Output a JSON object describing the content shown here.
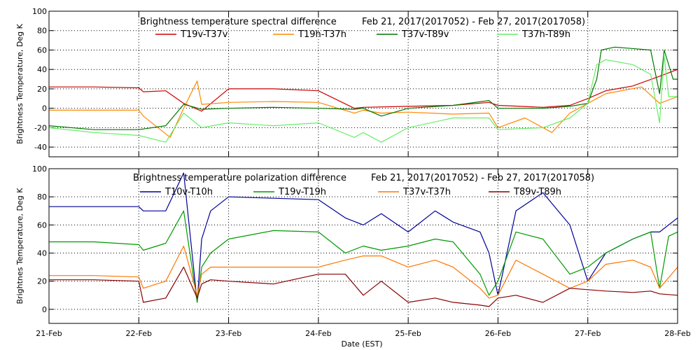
{
  "figure": {
    "xlabel": "Date (EST)",
    "x_tick_labels": [
      "21-Feb",
      "22-Feb",
      "23-Feb",
      "24-Feb",
      "25-Feb",
      "26-Feb",
      "27-Feb",
      "28-Feb"
    ]
  },
  "chart_data": [
    {
      "type": "line",
      "title": "Brightness temperature spectral difference",
      "date_range": "Feb 21, 2017(2017052) - Feb 27, 2017(2017058)",
      "ylabel": "Brightness Temperature, Deg K",
      "ylim": [
        -50,
        100
      ],
      "yticks": [
        -40,
        -20,
        0,
        20,
        40,
        60,
        80,
        100
      ],
      "xlim": [
        0,
        7
      ],
      "grid": true,
      "legend": "top",
      "series": [
        {
          "name": "T19v-T37v",
          "color": "#cc0000",
          "x": [
            0,
            0.5,
            1,
            1.05,
            1.3,
            1.5,
            1.7,
            2,
            2.5,
            3,
            3.4,
            3.5,
            4,
            4.5,
            4.9,
            5,
            5.5,
            5.8,
            6,
            6.2,
            6.5,
            6.8,
            7
          ],
          "y": [
            22,
            22,
            21,
            17,
            18,
            5,
            -3,
            20,
            20,
            18,
            0,
            1,
            2,
            3,
            6,
            3,
            1,
            3,
            10,
            18,
            23,
            33,
            40
          ]
        },
        {
          "name": "T19h-T37h",
          "color": "#ff8800",
          "x": [
            0,
            0.5,
            1,
            1.05,
            1.35,
            1.5,
            1.65,
            1.7,
            2,
            2.5,
            3,
            3.4,
            3.5,
            3.7,
            4,
            4.5,
            4.9,
            5,
            5.3,
            5.6,
            5.8,
            6,
            6.2,
            6.6,
            6.8,
            7
          ],
          "y": [
            -2,
            -2,
            -2,
            -8,
            -30,
            0,
            28,
            4,
            6,
            7,
            6,
            -5,
            -2,
            -5,
            -4,
            -6,
            -5,
            -20,
            -10,
            -25,
            -5,
            5,
            15,
            22,
            5,
            12
          ]
        },
        {
          "name": "T37v-T89v",
          "color": "#007700",
          "x": [
            0,
            0.5,
            1,
            1.3,
            1.5,
            1.7,
            2,
            2.5,
            3,
            3.4,
            3.5,
            3.7,
            4,
            4.5,
            4.9,
            5,
            5.5,
            5.8,
            6,
            6.1,
            6.15,
            6.3,
            6.7,
            6.8,
            6.85,
            6.95,
            7
          ],
          "y": [
            -18,
            -22,
            -22,
            -18,
            4,
            -1,
            0,
            1,
            0,
            -1,
            0,
            -8,
            0,
            3,
            8,
            0,
            0,
            2,
            5,
            30,
            60,
            63,
            60,
            15,
            60,
            30,
            30
          ]
        },
        {
          "name": "T37h-T89h",
          "color": "#66ee66",
          "x": [
            0,
            0.5,
            1,
            1.3,
            1.5,
            1.7,
            2,
            2.5,
            3,
            3.4,
            3.5,
            3.7,
            4,
            4.5,
            4.9,
            5,
            5.5,
            5.8,
            6,
            6.1,
            6.2,
            6.5,
            6.7,
            6.8,
            6.85,
            6.9,
            7
          ],
          "y": [
            -20,
            -25,
            -28,
            -35,
            -5,
            -20,
            -15,
            -18,
            -15,
            -30,
            -25,
            -35,
            -20,
            -10,
            -10,
            -22,
            -20,
            -10,
            5,
            45,
            50,
            45,
            35,
            -15,
            55,
            12,
            12
          ]
        }
      ]
    },
    {
      "type": "line",
      "title": "Brightness temperature polarization difference",
      "date_range": "Feb 21, 2017(2017052) - Feb 27, 2017(2017058)",
      "ylabel": "Brightnes Temperature, Deg K",
      "ylim": [
        -10,
        100
      ],
      "yticks": [
        0,
        20,
        40,
        60,
        80,
        100
      ],
      "xlim": [
        0,
        7
      ],
      "grid": true,
      "legend": "top",
      "series": [
        {
          "name": "T10v-T10h",
          "color": "#000099",
          "x": [
            0,
            0.5,
            1,
            1.05,
            1.3,
            1.5,
            1.65,
            1.7,
            1.8,
            2,
            2.5,
            3,
            3.3,
            3.5,
            3.7,
            4,
            4.3,
            4.5,
            4.8,
            4.9,
            5,
            5.2,
            5.5,
            5.8,
            6,
            6.2,
            6.5,
            6.7,
            6.8,
            7
          ],
          "y": [
            73,
            73,
            73,
            70,
            70,
            97,
            5,
            50,
            70,
            80,
            79,
            78,
            65,
            60,
            68,
            55,
            70,
            62,
            55,
            40,
            10,
            70,
            83,
            60,
            20,
            40,
            50,
            55,
            55,
            65
          ]
        },
        {
          "name": "T19v-T19h",
          "color": "#009900",
          "x": [
            0,
            0.5,
            1,
            1.05,
            1.3,
            1.5,
            1.65,
            1.7,
            1.8,
            2,
            2.5,
            3,
            3.3,
            3.5,
            3.7,
            4,
            4.3,
            4.5,
            4.8,
            4.9,
            5,
            5.2,
            5.5,
            5.8,
            6,
            6.2,
            6.5,
            6.7,
            6.8,
            6.9,
            7
          ],
          "y": [
            48,
            48,
            46,
            42,
            47,
            70,
            5,
            30,
            40,
            50,
            56,
            55,
            40,
            45,
            42,
            45,
            50,
            48,
            25,
            10,
            20,
            55,
            50,
            25,
            30,
            40,
            50,
            55,
            15,
            52,
            55
          ]
        },
        {
          "name": "T37v-T37h",
          "color": "#ff7700",
          "x": [
            0,
            0.5,
            1,
            1.05,
            1.3,
            1.5,
            1.65,
            1.7,
            1.8,
            2,
            2.5,
            3,
            3.3,
            3.5,
            3.7,
            4,
            4.3,
            4.5,
            4.8,
            4.9,
            5,
            5.2,
            5.5,
            5.8,
            6,
            6.2,
            6.5,
            6.7,
            6.8,
            7
          ],
          "y": [
            24,
            24,
            23,
            15,
            20,
            45,
            10,
            25,
            30,
            30,
            30,
            30,
            35,
            38,
            38,
            30,
            35,
            30,
            15,
            8,
            10,
            35,
            25,
            15,
            20,
            32,
            35,
            30,
            15,
            30
          ]
        },
        {
          "name": "T89v-T89h",
          "color": "#880000",
          "x": [
            0,
            0.5,
            1,
            1.05,
            1.3,
            1.5,
            1.65,
            1.7,
            1.8,
            2,
            2.5,
            3,
            3.3,
            3.5,
            3.7,
            4,
            4.3,
            4.5,
            4.8,
            4.9,
            5,
            5.2,
            5.5,
            5.8,
            6,
            6.2,
            6.5,
            6.7,
            6.8,
            7
          ],
          "y": [
            21,
            21,
            20,
            5,
            8,
            30,
            8,
            18,
            21,
            20,
            18,
            25,
            25,
            10,
            20,
            5,
            8,
            5,
            3,
            2,
            8,
            10,
            5,
            15,
            14,
            13,
            12,
            13,
            11,
            10
          ]
        }
      ]
    }
  ]
}
